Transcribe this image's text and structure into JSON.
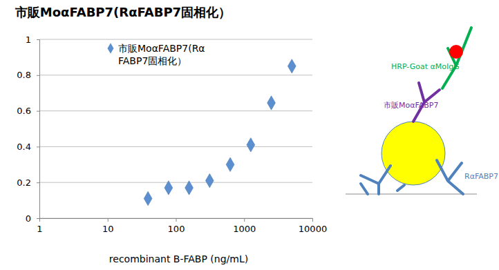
{
  "chart_data": {
    "type": "scatter",
    "title": "市販MoαFABP7(RαFABP7固相化）",
    "x_label": "recombinant B-FABP (ng/mL)",
    "x": [
      39,
      78,
      156,
      312,
      625,
      1250,
      2500,
      5000
    ],
    "series": [
      {
        "name": "市販MoαFABP7(RαFABP7固相化）",
        "color": "#5b8fd0",
        "marker": "diamond",
        "values": [
          0.11,
          0.17,
          0.17,
          0.21,
          0.3,
          0.41,
          0.645,
          0.85
        ]
      }
    ],
    "xlim": [
      1,
      10000
    ],
    "xticks": [
      1,
      10,
      100,
      1000,
      10000
    ],
    "ylim": [
      0,
      1
    ],
    "yticks": [
      0,
      0.2,
      0.4,
      0.6,
      0.8,
      1
    ],
    "log": "x",
    "grid": true,
    "legend": "upper left",
    "annotations": [
      "HRP-Goat αMoIgG",
      "市販MoαFABP7",
      "RαFABP7"
    ]
  }
}
